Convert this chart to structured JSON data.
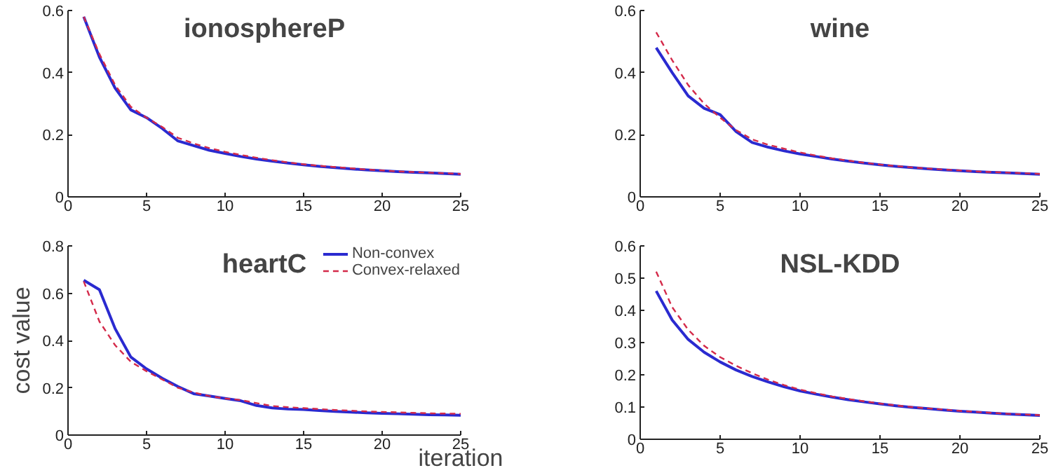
{
  "chart_data": [
    {
      "type": "line",
      "title": "ionosphereP",
      "x": [
        1,
        2,
        3,
        4,
        5,
        6,
        7,
        8,
        9,
        10,
        11,
        12,
        13,
        14,
        15,
        16,
        17,
        18,
        19,
        20,
        21,
        22,
        23,
        24,
        25
      ],
      "xlim": [
        0,
        25
      ],
      "xticks": [
        0,
        5,
        10,
        15,
        20,
        25
      ],
      "ylim": [
        0,
        0.6
      ],
      "yticks": [
        0,
        0.2,
        0.4,
        0.6
      ],
      "grid": false,
      "series": [
        {
          "color": "#2a2ad0",
          "line_style": "solid",
          "values": [
            0.58,
            0.45,
            0.35,
            0.28,
            0.255,
            0.22,
            0.18,
            0.165,
            0.15,
            0.14,
            0.13,
            0.122,
            0.115,
            0.109,
            0.103,
            0.098,
            0.094,
            0.09,
            0.087,
            0.084,
            0.081,
            0.079,
            0.077,
            0.075,
            0.073
          ]
        },
        {
          "color": "#d42a4a",
          "line_style": "dashed",
          "values": [
            0.58,
            0.46,
            0.36,
            0.29,
            0.255,
            0.225,
            0.19,
            0.172,
            0.157,
            0.145,
            0.135,
            0.126,
            0.118,
            0.111,
            0.105,
            0.1,
            0.096,
            0.092,
            0.088,
            0.085,
            0.082,
            0.08,
            0.078,
            0.076,
            0.074
          ]
        }
      ]
    },
    {
      "type": "line",
      "title": "wine",
      "x": [
        1,
        2,
        3,
        4,
        5,
        6,
        7,
        8,
        9,
        10,
        11,
        12,
        13,
        14,
        15,
        16,
        17,
        18,
        19,
        20,
        21,
        22,
        23,
        24,
        25
      ],
      "xlim": [
        0,
        25
      ],
      "xticks": [
        0,
        5,
        10,
        15,
        20,
        25
      ],
      "ylim": [
        0,
        0.6
      ],
      "yticks": [
        0,
        0.2,
        0.4,
        0.6
      ],
      "grid": false,
      "series": [
        {
          "color": "#2a2ad0",
          "line_style": "solid",
          "values": [
            0.48,
            0.4,
            0.325,
            0.285,
            0.265,
            0.21,
            0.175,
            0.16,
            0.148,
            0.138,
            0.13,
            0.122,
            0.115,
            0.109,
            0.103,
            0.098,
            0.094,
            0.09,
            0.087,
            0.084,
            0.081,
            0.079,
            0.077,
            0.075,
            0.073
          ]
        },
        {
          "color": "#d42a4a",
          "line_style": "dashed",
          "values": [
            0.53,
            0.44,
            0.36,
            0.3,
            0.255,
            0.215,
            0.185,
            0.168,
            0.155,
            0.143,
            0.133,
            0.124,
            0.117,
            0.11,
            0.104,
            0.099,
            0.095,
            0.091,
            0.088,
            0.085,
            0.082,
            0.08,
            0.078,
            0.076,
            0.074
          ]
        }
      ]
    },
    {
      "type": "line",
      "title": "heartC",
      "ylabel": "cost value",
      "xlabel": "iteration",
      "legend": "top right",
      "x": [
        1,
        2,
        3,
        4,
        5,
        6,
        7,
        8,
        9,
        10,
        11,
        12,
        13,
        14,
        15,
        16,
        17,
        18,
        19,
        20,
        21,
        22,
        23,
        24,
        25
      ],
      "xlim": [
        0,
        25
      ],
      "xticks": [
        0,
        5,
        10,
        15,
        20,
        25
      ],
      "ylim": [
        0,
        0.8
      ],
      "yticks": [
        0,
        0.2,
        0.4,
        0.6,
        0.8
      ],
      "grid": false,
      "series": [
        {
          "name": "Non-convex",
          "color": "#2a2ad0",
          "line_style": "solid",
          "values": [
            0.655,
            0.615,
            0.45,
            0.33,
            0.28,
            0.24,
            0.205,
            0.175,
            0.165,
            0.155,
            0.145,
            0.125,
            0.115,
            0.11,
            0.108,
            0.104,
            0.1,
            0.097,
            0.094,
            0.092,
            0.09,
            0.088,
            0.086,
            0.085,
            0.084
          ]
        },
        {
          "name": "Convex-relaxed",
          "color": "#d42a4a",
          "line_style": "dashed",
          "values": [
            0.65,
            0.48,
            0.38,
            0.31,
            0.27,
            0.235,
            0.2,
            0.18,
            0.165,
            0.155,
            0.148,
            0.135,
            0.123,
            0.118,
            0.114,
            0.11,
            0.106,
            0.103,
            0.1,
            0.098,
            0.096,
            0.094,
            0.092,
            0.091,
            0.09
          ]
        }
      ]
    },
    {
      "type": "line",
      "title": "NSL-KDD",
      "x": [
        1,
        2,
        3,
        4,
        5,
        6,
        7,
        8,
        9,
        10,
        11,
        12,
        13,
        14,
        15,
        16,
        17,
        18,
        19,
        20,
        21,
        22,
        23,
        24,
        25
      ],
      "xlim": [
        0,
        25
      ],
      "xticks": [
        0,
        5,
        10,
        15,
        20,
        25
      ],
      "ylim": [
        0,
        0.6
      ],
      "yticks": [
        0,
        0.1,
        0.2,
        0.3,
        0.4,
        0.5,
        0.6
      ],
      "grid": false,
      "series": [
        {
          "color": "#2a2ad0",
          "line_style": "solid",
          "values": [
            0.46,
            0.37,
            0.31,
            0.27,
            0.24,
            0.215,
            0.195,
            0.178,
            0.163,
            0.15,
            0.14,
            0.131,
            0.123,
            0.116,
            0.11,
            0.104,
            0.099,
            0.095,
            0.091,
            0.087,
            0.084,
            0.081,
            0.078,
            0.076,
            0.074
          ]
        },
        {
          "color": "#d42a4a",
          "line_style": "dashed",
          "values": [
            0.52,
            0.41,
            0.34,
            0.29,
            0.255,
            0.228,
            0.205,
            0.185,
            0.168,
            0.154,
            0.143,
            0.133,
            0.125,
            0.118,
            0.111,
            0.105,
            0.1,
            0.096,
            0.092,
            0.088,
            0.085,
            0.082,
            0.079,
            0.077,
            0.075
          ]
        }
      ]
    }
  ]
}
